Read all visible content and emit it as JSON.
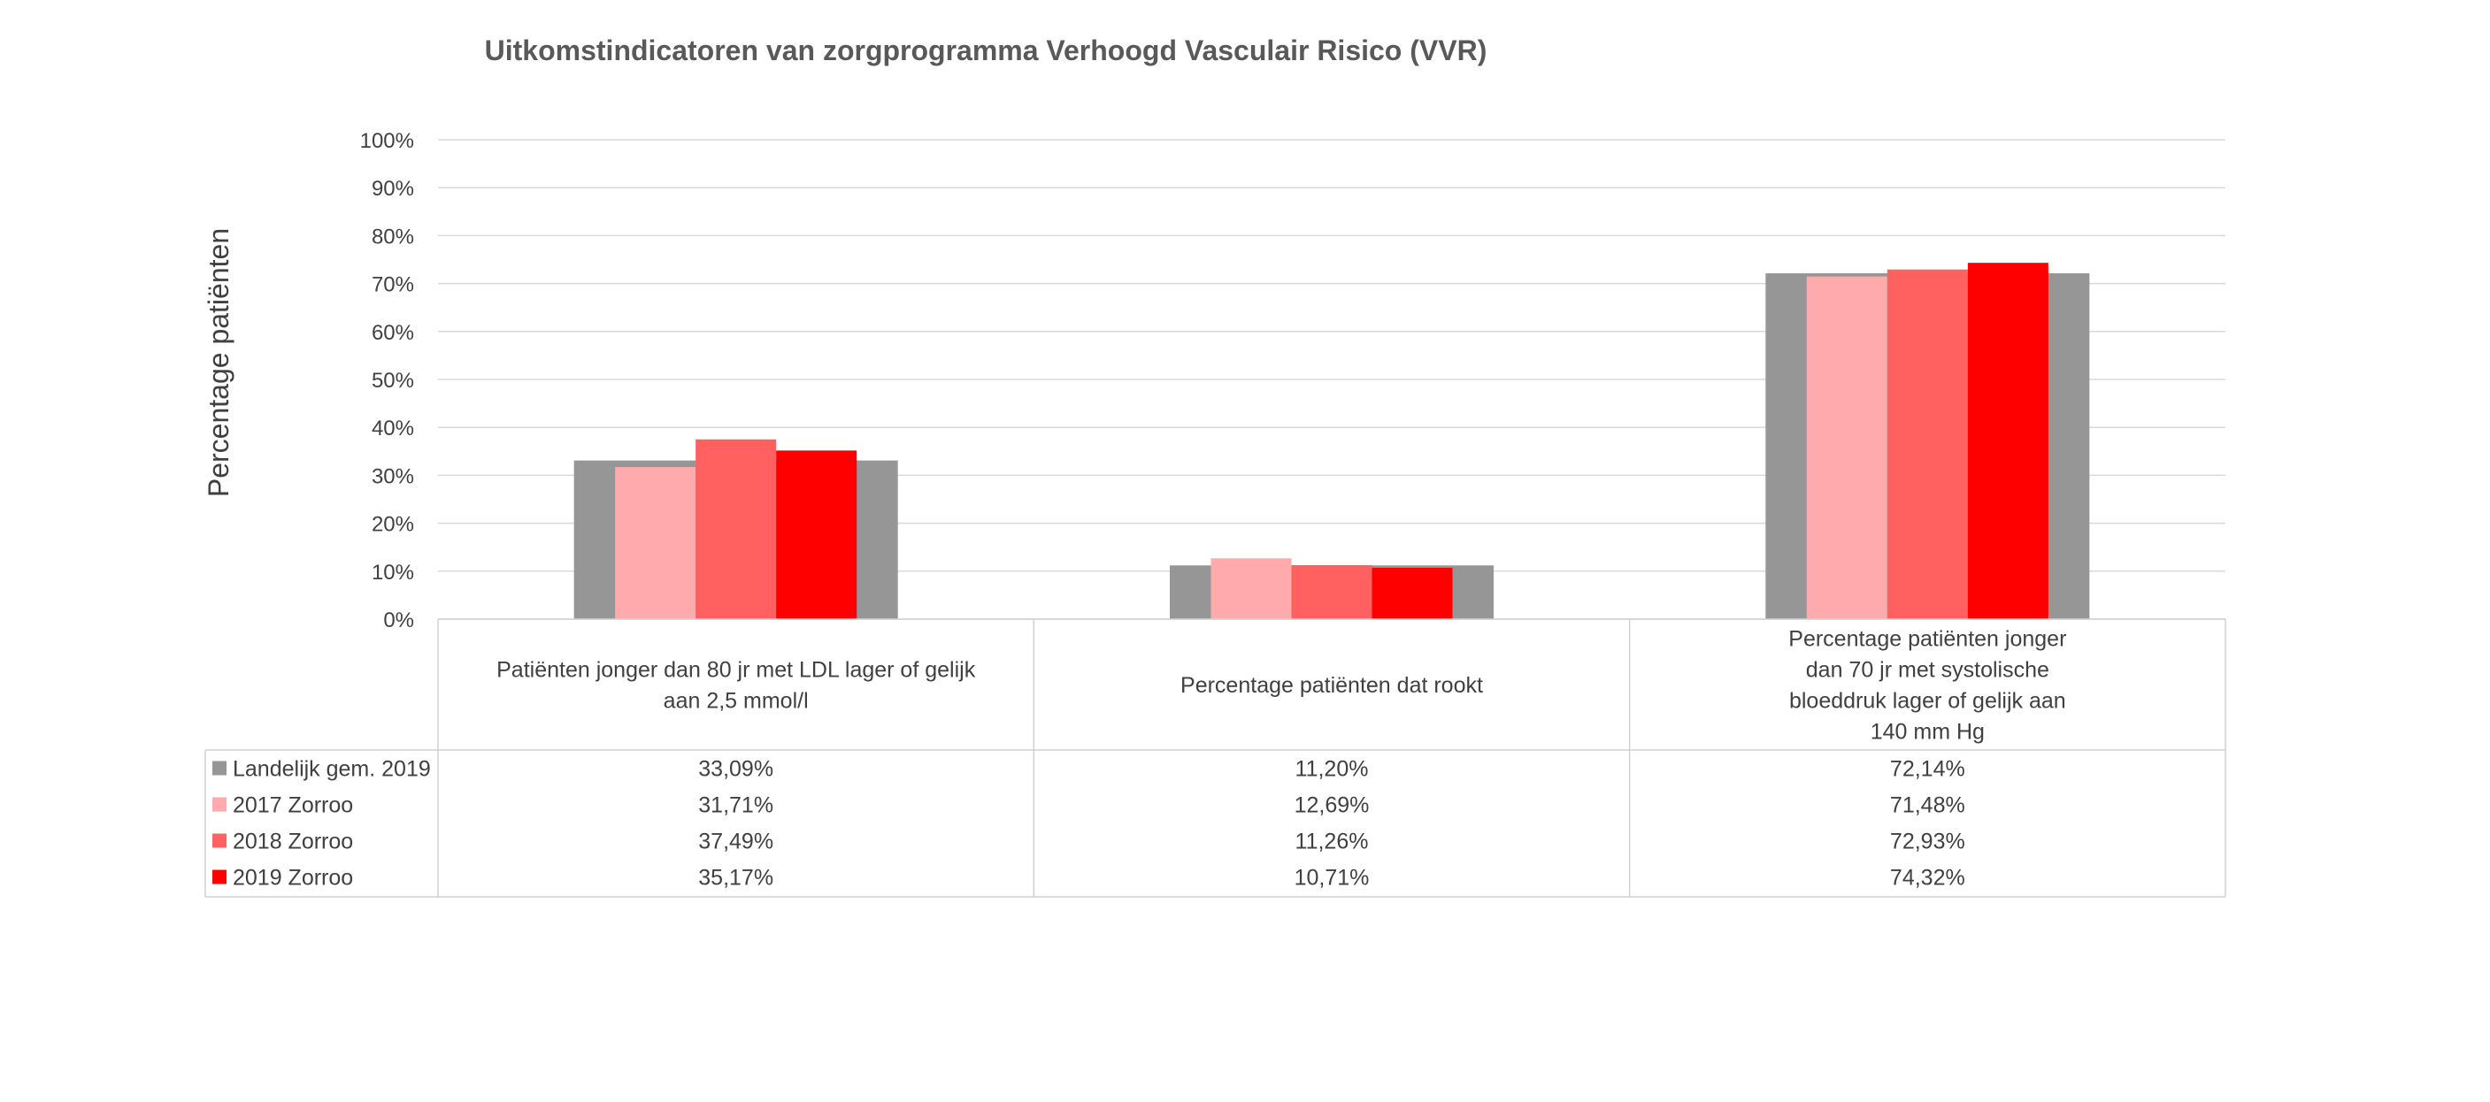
{
  "chart_data": {
    "type": "bar",
    "title": "Uitkomstindicatoren van zorgprogramma Verhoogd Vasculair Risico (VVR)",
    "ylabel": "Percentage patiënten",
    "xlabel": "",
    "ylim": [
      0,
      100
    ],
    "yticks": [
      "0%",
      "10%",
      "20%",
      "30%",
      "40%",
      "50%",
      "60%",
      "70%",
      "80%",
      "90%",
      "100%"
    ],
    "grid": true,
    "legend_placement": "data-table-left",
    "categories": [
      [
        "Patiënten jonger dan 80 jr met LDL lager of gelijk",
        "aan 2,5 mmol/l"
      ],
      [
        "Percentage patiënten dat rookt"
      ],
      [
        "Percentage patiënten jonger",
        "dan 70 jr met systolische",
        "bloeddruk lager of gelijk aan",
        "140 mm Hg"
      ]
    ],
    "reference_series": {
      "name": "Landelijk gem. 2019",
      "color": "#969696",
      "values": [
        33.09,
        11.2,
        72.14
      ],
      "labels": [
        "33,09%",
        "11,20%",
        "72,14%"
      ]
    },
    "series": [
      {
        "name": "2017 Zorroo",
        "color": "#FFABAE",
        "values": [
          31.71,
          12.69,
          71.48
        ],
        "labels": [
          "31,71%",
          "12,69%",
          "71,48%"
        ]
      },
      {
        "name": "2018 Zorroo",
        "color": "#FF6161",
        "values": [
          37.49,
          11.26,
          72.93
        ],
        "labels": [
          "37,49%",
          "11,26%",
          "72,93%"
        ]
      },
      {
        "name": "2019 Zorroo",
        "color": "#FF0000",
        "values": [
          35.17,
          10.71,
          74.32
        ],
        "labels": [
          "35,17%",
          "10,71%",
          "74,32%"
        ]
      }
    ]
  }
}
